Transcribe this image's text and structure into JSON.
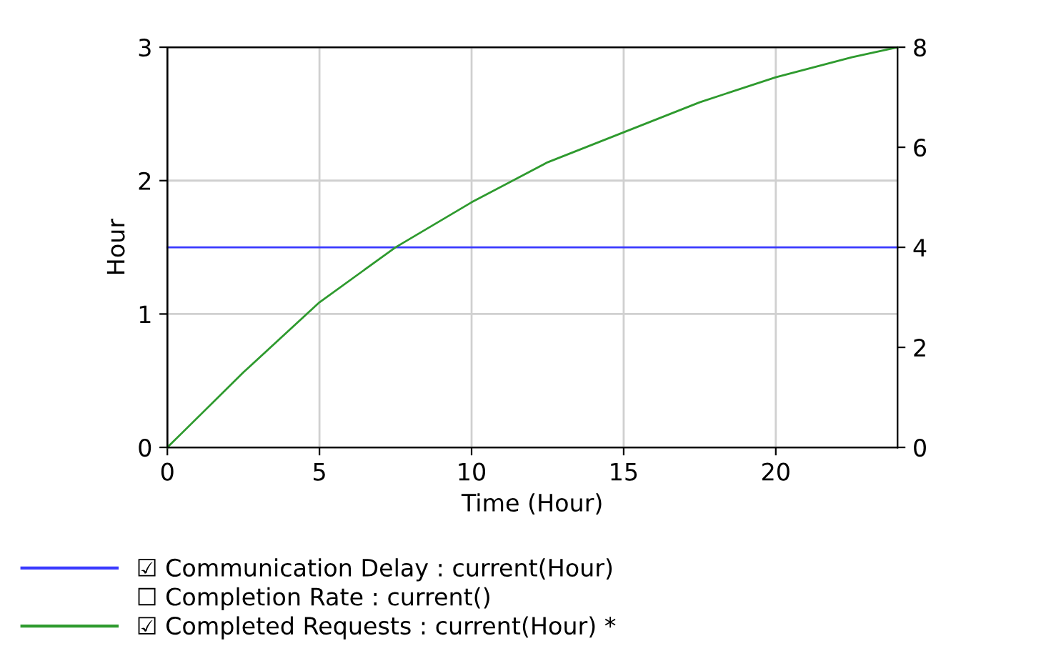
{
  "chart_data": {
    "type": "line",
    "xlabel": "Time (Hour)",
    "ylabel": "Hour",
    "x": [
      0,
      2.5,
      5,
      7.5,
      10,
      12.5,
      15,
      17.5,
      20,
      22.5,
      24
    ],
    "xlim": [
      0,
      24
    ],
    "xticks": [
      0,
      5,
      10,
      15,
      20
    ],
    "ylim": [
      0,
      3
    ],
    "yticks": [
      0,
      1,
      2,
      3
    ],
    "y2lim": [
      0,
      8
    ],
    "y2ticks": [
      0,
      2,
      4,
      6,
      8
    ],
    "grid": true,
    "legend": "bottom",
    "marker": "none",
    "line_style": "solid",
    "series": [
      {
        "name": "☑ Communication Delay : current(Hour)",
        "color": "#3a3aff",
        "values": [
          1.5,
          1.5,
          1.5,
          1.5,
          1.5,
          1.5,
          1.5,
          1.5,
          1.5,
          1.5,
          1.5
        ]
      },
      {
        "name": "☐ Completion Rate : current()",
        "values": [
          null,
          null,
          null,
          null,
          null,
          null,
          null,
          null,
          null,
          null,
          null
        ]
      },
      {
        "name": "☑ Completed Requests : current(Hour) *",
        "color": "#2e9a2e",
        "axis": "y2",
        "values": [
          0,
          1.5,
          2.9,
          4.0,
          4.9,
          5.7,
          6.3,
          6.9,
          7.4,
          7.8,
          8.0
        ]
      }
    ]
  }
}
